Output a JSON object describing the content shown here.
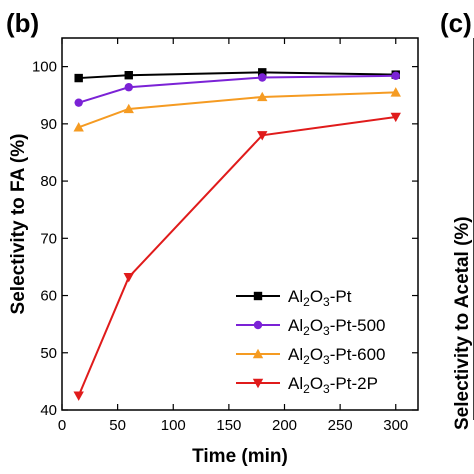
{
  "panels": {
    "b_label": "(b)",
    "c_label": "(c)"
  },
  "chart_data": [
    {
      "panel": "(b)",
      "type": "line",
      "xlabel": "Time (min)",
      "ylabel": "Selectivity to FA (%)",
      "xlim": [
        0,
        320
      ],
      "ylim": [
        40,
        105
      ],
      "xticks": [
        0,
        50,
        100,
        150,
        200,
        250,
        300
      ],
      "yticks": [
        40,
        50,
        60,
        70,
        80,
        90,
        100
      ],
      "grid": false,
      "legend_position": "bottom-right",
      "series": [
        {
          "name": "Al2O3-Pt",
          "color": "#000000",
          "marker": "square",
          "x": [
            15,
            60,
            180,
            300
          ],
          "y": [
            98.0,
            98.5,
            99.0,
            98.6
          ]
        },
        {
          "name": "Al2O3-Pt-500",
          "color": "#7b22d6",
          "marker": "circle",
          "x": [
            15,
            60,
            180,
            300
          ],
          "y": [
            93.7,
            96.4,
            98.1,
            98.4
          ]
        },
        {
          "name": "Al2O3-Pt-600",
          "color": "#f59b22",
          "marker": "triangle-up",
          "x": [
            15,
            60,
            180,
            300
          ],
          "y": [
            89.4,
            92.6,
            94.7,
            95.5
          ]
        },
        {
          "name": "Al2O3-Pt-2P",
          "color": "#e01b1b",
          "marker": "triangle-down",
          "x": [
            15,
            60,
            180,
            300
          ],
          "y": [
            42.5,
            63.2,
            88.0,
            91.2
          ]
        }
      ]
    },
    {
      "panel": "(c)",
      "type": "line",
      "ylabel": "Selectivity to Acetal (%)",
      "note": "partially visible at right edge"
    }
  ]
}
